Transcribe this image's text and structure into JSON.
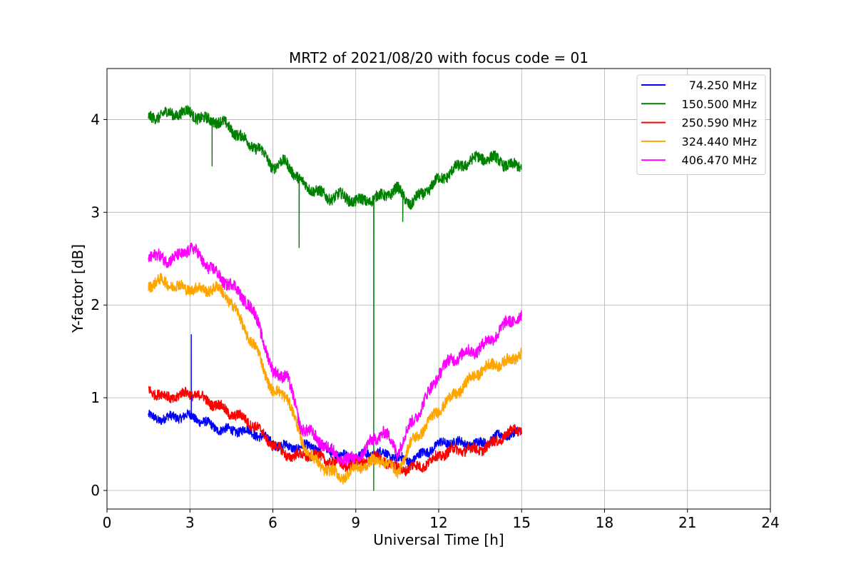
{
  "chart_data": {
    "type": "line",
    "title": "MRT2 of 2021/08/20 with focus code = 01",
    "xlabel": "Universal Time [h]",
    "ylabel": "Y-factor [dB]",
    "xlim": [
      0,
      24
    ],
    "ylim": [
      -0.2,
      4.55
    ],
    "xticks": [
      0,
      3,
      6,
      9,
      12,
      15,
      18,
      21,
      24
    ],
    "yticks": [
      0,
      1,
      2,
      3,
      4
    ],
    "grid": true,
    "legend_position": "top-right",
    "series": [
      {
        "name": "74.250 MHz",
        "color": "#0000ff",
        "noise": 0.05,
        "x": [
          1.5,
          2,
          2.5,
          3,
          3.5,
          4,
          4.5,
          5,
          5.5,
          6,
          6.5,
          7,
          7.5,
          8,
          8.5,
          9,
          9.5,
          10,
          10.5,
          11,
          11.5,
          12,
          12.5,
          13,
          13.5,
          14,
          14.5,
          15
        ],
        "y": [
          0.82,
          0.8,
          0.78,
          0.77,
          0.74,
          0.7,
          0.66,
          0.62,
          0.57,
          0.53,
          0.5,
          0.47,
          0.44,
          0.42,
          0.4,
          0.39,
          0.38,
          0.37,
          0.35,
          0.36,
          0.42,
          0.47,
          0.5,
          0.52,
          0.54,
          0.56,
          0.58,
          0.6
        ],
        "spikes": [
          {
            "x": 3.05,
            "y": 1.68
          }
        ]
      },
      {
        "name": "150.500 MHz",
        "color": "#008000",
        "noise": 0.06,
        "x": [
          1.5,
          2,
          2.5,
          3,
          3.5,
          4,
          4.5,
          5,
          5.5,
          6,
          6.5,
          7,
          7.5,
          8,
          8.5,
          9,
          9.5,
          10,
          10.5,
          11,
          11.5,
          12,
          12.5,
          13,
          13.5,
          14,
          14.5,
          15
        ],
        "y": [
          3.98,
          4.02,
          4.08,
          4.12,
          4.0,
          3.95,
          3.88,
          3.8,
          3.72,
          3.48,
          3.5,
          3.32,
          3.28,
          3.18,
          3.15,
          3.08,
          3.15,
          3.22,
          3.25,
          3.05,
          3.2,
          3.38,
          3.48,
          3.52,
          3.55,
          3.58,
          3.55,
          3.5
        ],
        "spikes": [
          {
            "x": 3.8,
            "y": 3.5
          },
          {
            "x": 6.95,
            "y": 2.62
          },
          {
            "x": 9.65,
            "y": 0.0
          },
          {
            "x": 10.7,
            "y": 2.9
          }
        ]
      },
      {
        "name": "250.590 MHz",
        "color": "#ff0000",
        "noise": 0.055,
        "x": [
          1.5,
          2,
          2.5,
          3,
          3.5,
          4,
          4.5,
          5,
          5.5,
          6,
          6.5,
          7,
          7.5,
          8,
          8.5,
          9,
          9.5,
          10,
          10.5,
          11,
          11.5,
          12,
          12.5,
          13,
          13.5,
          14,
          14.5,
          15
        ],
        "y": [
          1.12,
          1.05,
          1.0,
          1.02,
          0.98,
          0.95,
          0.85,
          0.75,
          0.62,
          0.5,
          0.42,
          0.38,
          0.35,
          0.3,
          0.3,
          0.32,
          0.33,
          0.3,
          0.22,
          0.28,
          0.3,
          0.35,
          0.4,
          0.45,
          0.48,
          0.52,
          0.58,
          0.65
        ]
      },
      {
        "name": "324.440 MHz",
        "color": "#ffa500",
        "noise": 0.06,
        "x": [
          1.5,
          2,
          2.5,
          3,
          3.5,
          4,
          4.5,
          5,
          5.5,
          6,
          6.5,
          7,
          7.5,
          8,
          8.5,
          9,
          9.5,
          10,
          10.5,
          11,
          11.5,
          12,
          12.5,
          13,
          13.5,
          14,
          14.5,
          15
        ],
        "y": [
          2.2,
          2.22,
          2.2,
          2.22,
          2.18,
          2.15,
          2.0,
          1.75,
          1.5,
          1.05,
          1.0,
          0.55,
          0.35,
          0.25,
          0.12,
          0.2,
          0.3,
          0.38,
          0.2,
          0.48,
          0.65,
          0.9,
          1.05,
          1.15,
          1.25,
          1.35,
          1.42,
          1.52
        ]
      },
      {
        "name": "406.470 MHz",
        "color": "#ff00ff",
        "noise": 0.065,
        "x": [
          1.5,
          2,
          2.5,
          3,
          3.5,
          4,
          4.5,
          5,
          5.5,
          6,
          6.5,
          7,
          7.5,
          8,
          8.5,
          9,
          9.5,
          10,
          10.5,
          11,
          11.5,
          12,
          12.5,
          13,
          13.5,
          14,
          14.5,
          15
        ],
        "y": [
          2.55,
          2.55,
          2.5,
          2.58,
          2.45,
          2.35,
          2.25,
          2.05,
          1.75,
          1.25,
          1.3,
          0.72,
          0.55,
          0.42,
          0.35,
          0.38,
          0.5,
          0.6,
          0.4,
          0.75,
          1.0,
          1.25,
          1.38,
          1.48,
          1.58,
          1.68,
          1.78,
          1.85
        ]
      }
    ]
  }
}
